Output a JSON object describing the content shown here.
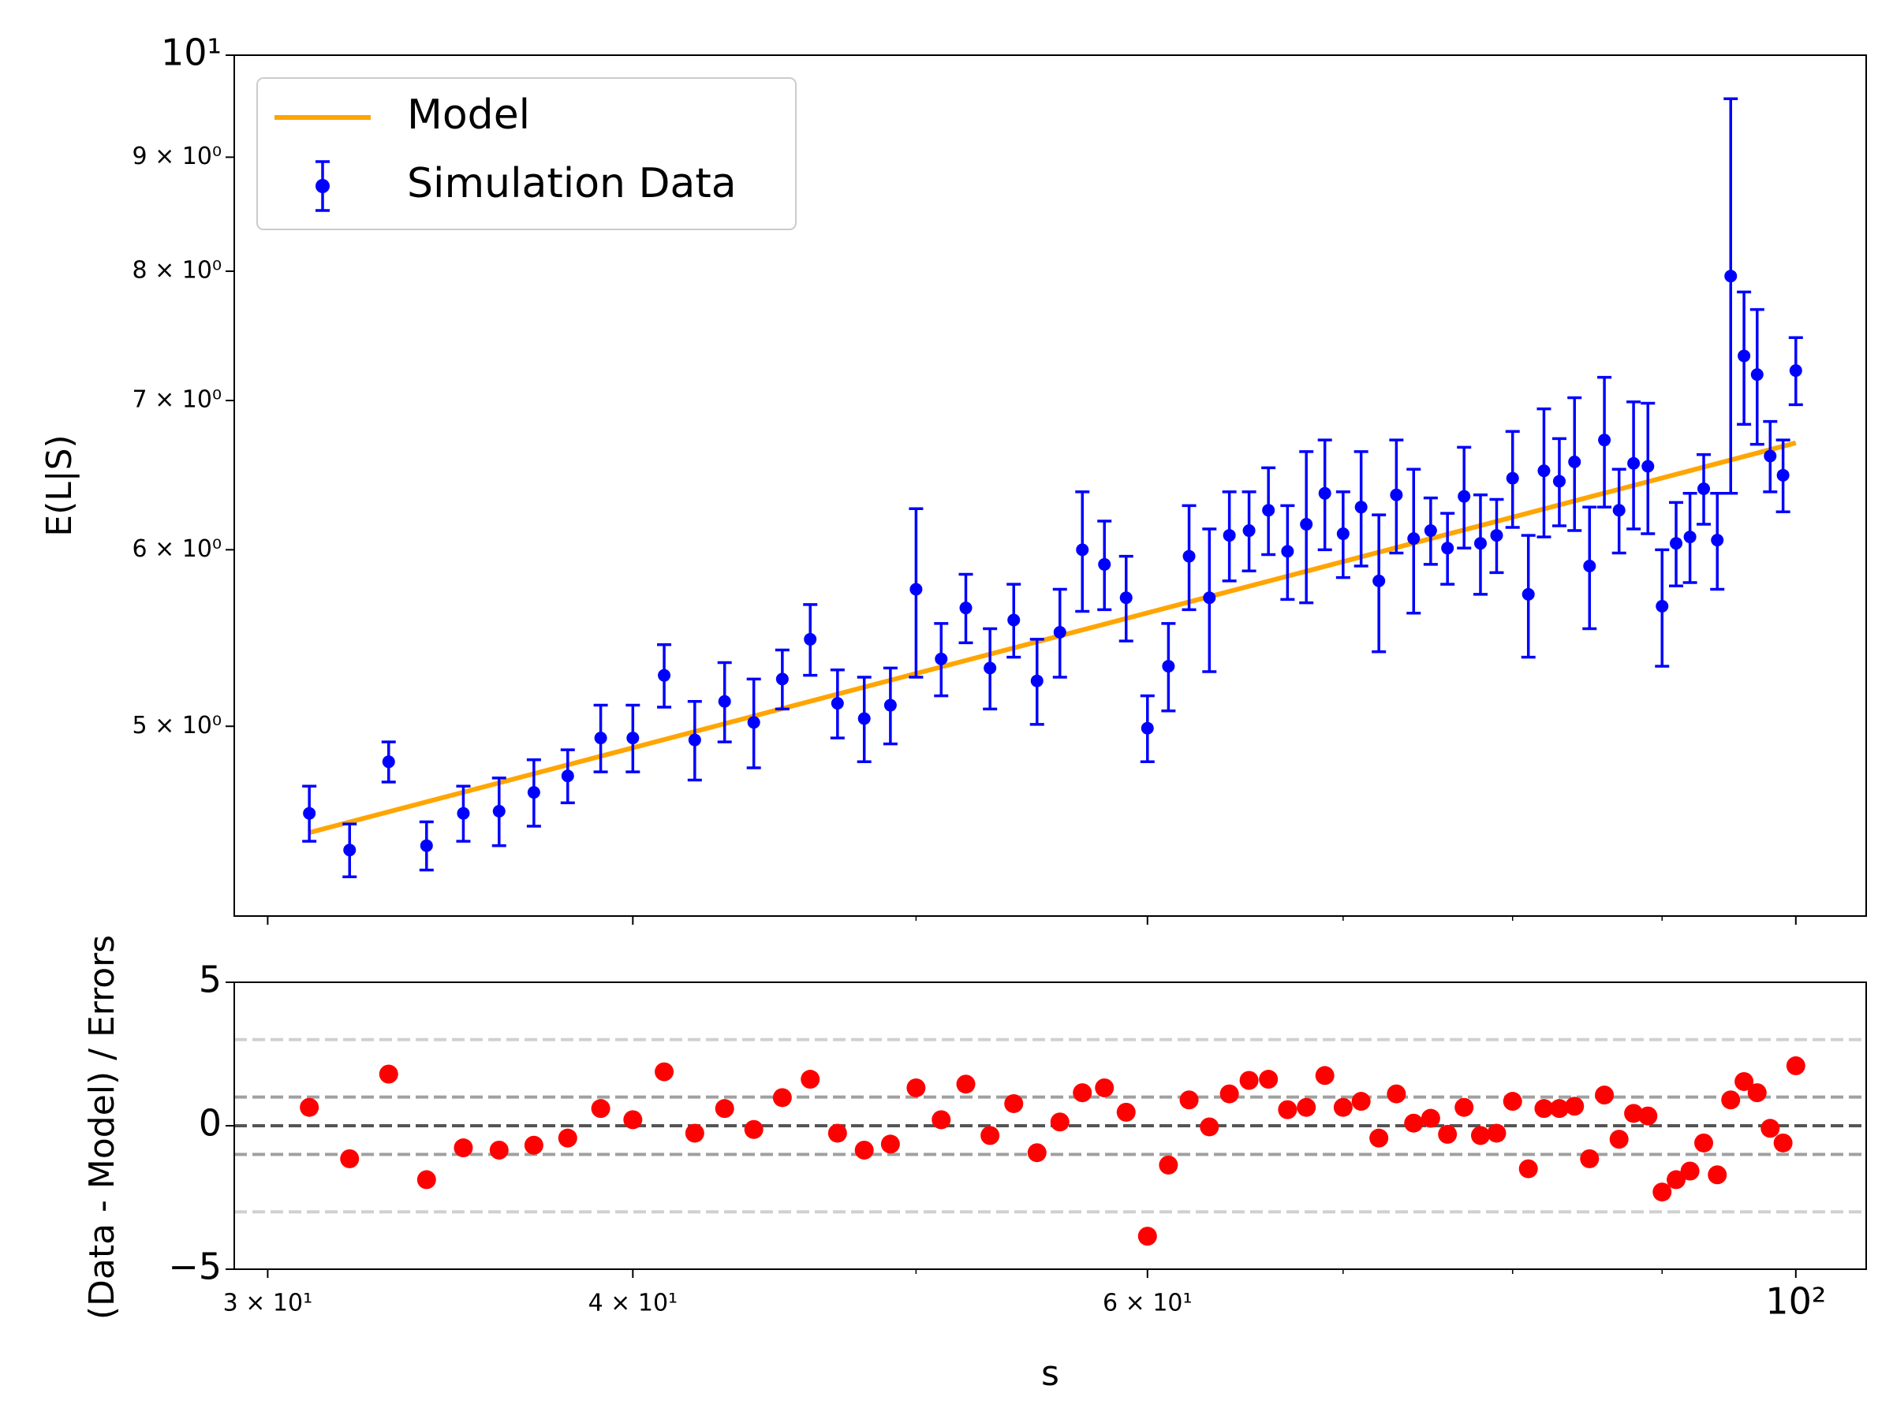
{
  "chart_data": [
    {
      "type": "errorbar",
      "ylabel": "E(L|S)",
      "log_x": true,
      "log_y": true,
      "xlim": [
        29.22,
        105.7
      ],
      "ylim": [
        4.11,
        10
      ],
      "xticks": [
        30,
        40,
        60,
        100
      ],
      "xminorticks": [
        50,
        70,
        80,
        90
      ],
      "show_xtick_labels": false,
      "yticks": [
        {
          "value": 5,
          "label": "5 × 10⁰"
        },
        {
          "value": 6,
          "label": "6 × 10⁰"
        },
        {
          "value": 7,
          "label": "7 × 10⁰"
        },
        {
          "value": 8,
          "label": "8 × 10⁰"
        },
        {
          "value": 9,
          "label": "9 × 10⁰"
        },
        {
          "value": 10,
          "label": "10¹"
        }
      ],
      "legend": "upper left",
      "x": [
        31,
        32,
        33,
        34,
        35,
        36,
        37,
        38,
        39,
        40,
        41,
        42,
        43,
        44,
        45,
        46,
        47,
        48,
        49,
        50,
        51,
        52,
        53,
        54,
        55,
        56,
        57,
        58,
        59,
        60,
        61,
        62,
        63,
        64,
        65,
        66,
        67,
        68,
        69,
        70,
        71,
        72,
        73,
        74,
        75,
        76,
        77,
        78,
        79,
        80,
        81,
        82,
        83,
        84,
        85,
        86,
        87,
        88,
        89,
        90,
        91,
        92,
        93,
        94,
        95,
        96,
        97,
        98,
        99,
        100
      ],
      "series": [
        {
          "name": "Model",
          "kind": "line",
          "color": "#ffa500",
          "x": [
            31,
            100
          ],
          "values": [
            4.48,
            6.7
          ]
        },
        {
          "name": "Simulation Data",
          "kind": "errorbar",
          "color": "#0000ff",
          "values": [
            4.57,
            4.4,
            4.82,
            4.42,
            4.57,
            4.58,
            4.67,
            4.75,
            4.94,
            4.94,
            5.27,
            4.93,
            5.13,
            5.02,
            5.25,
            5.47,
            5.12,
            5.04,
            5.11,
            5.76,
            5.36,
            5.65,
            5.31,
            5.58,
            5.24,
            5.51,
            6.0,
            5.91,
            5.71,
            4.99,
            5.32,
            5.96,
            5.71,
            6.09,
            6.12,
            6.25,
            5.99,
            6.16,
            6.36,
            6.1,
            6.27,
            5.81,
            6.35,
            6.07,
            6.12,
            6.01,
            6.34,
            6.04,
            6.09,
            6.46,
            5.73,
            6.51,
            6.44,
            6.57,
            5.9,
            6.72,
            6.25,
            6.56,
            6.54,
            5.66,
            6.04,
            6.08,
            6.39,
            6.06,
            7.96,
            7.33,
            7.19,
            6.61,
            6.48,
            7.22
          ],
          "errors": [
            0.13,
            0.12,
            0.1,
            0.11,
            0.13,
            0.16,
            0.16,
            0.13,
            0.17,
            0.17,
            0.17,
            0.2,
            0.21,
            0.23,
            0.16,
            0.2,
            0.18,
            0.22,
            0.2,
            0.5,
            0.2,
            0.2,
            0.22,
            0.21,
            0.23,
            0.25,
            0.37,
            0.27,
            0.25,
            0.17,
            0.24,
            0.32,
            0.42,
            0.28,
            0.25,
            0.28,
            0.29,
            0.48,
            0.36,
            0.27,
            0.37,
            0.41,
            0.37,
            0.45,
            0.21,
            0.22,
            0.33,
            0.31,
            0.23,
            0.32,
            0.36,
            0.43,
            0.29,
            0.45,
            0.37,
            0.45,
            0.27,
            0.43,
            0.44,
            0.34,
            0.26,
            0.28,
            0.23,
            0.3,
            1.6,
            0.5,
            0.5,
            0.24,
            0.24,
            0.25
          ]
        }
      ]
    },
    {
      "type": "scatter",
      "xlabel": "s",
      "ylabel": "(Data - Model) / Errors",
      "log_x": true,
      "xlim": [
        29.22,
        105.7
      ],
      "ylim": [
        -5,
        5
      ],
      "xticks": [
        {
          "value": 30,
          "label": "3 × 10¹"
        },
        {
          "value": 40,
          "label": "4 × 10¹"
        },
        {
          "value": 60,
          "label": "6 × 10¹"
        },
        {
          "value": 100,
          "label": "10²"
        }
      ],
      "xminorticks": [
        50,
        70,
        80,
        90
      ],
      "yticks": [
        {
          "value": -5,
          "label": "−5"
        },
        0,
        5
      ],
      "reference_lines": [
        {
          "value": 3,
          "color": "#d0d0d0"
        },
        {
          "value": 1,
          "color": "#a0a0a0"
        },
        {
          "value": 0,
          "color": "#555555"
        },
        {
          "value": -1,
          "color": "#a0a0a0"
        },
        {
          "value": -3,
          "color": "#d0d0d0"
        }
      ],
      "color": "#ff0000",
      "x": [
        31,
        32,
        33,
        34,
        35,
        36,
        37,
        38,
        39,
        40,
        41,
        42,
        43,
        44,
        45,
        46,
        47,
        48,
        49,
        50,
        51,
        52,
        53,
        54,
        55,
        56,
        57,
        58,
        59,
        60,
        61,
        62,
        63,
        64,
        65,
        66,
        67,
        68,
        69,
        70,
        71,
        72,
        73,
        74,
        75,
        76,
        77,
        78,
        79,
        80,
        81,
        82,
        83,
        84,
        85,
        86,
        87,
        88,
        89,
        90,
        91,
        92,
        93,
        94,
        95,
        96,
        97,
        98,
        99,
        100
      ],
      "values": [
        0.64,
        -1.15,
        1.8,
        -1.88,
        -0.77,
        -0.85,
        -0.68,
        -0.43,
        0.6,
        0.21,
        1.88,
        -0.26,
        0.6,
        -0.13,
        0.98,
        1.62,
        -0.26,
        -0.85,
        -0.64,
        1.32,
        0.21,
        1.45,
        -0.34,
        0.77,
        -0.94,
        0.13,
        1.15,
        1.32,
        0.47,
        -3.85,
        -1.37,
        0.9,
        -0.04,
        1.11,
        1.58,
        1.62,
        0.56,
        0.64,
        1.75,
        0.64,
        0.85,
        -0.43,
        1.11,
        0.09,
        0.26,
        -0.3,
        0.64,
        -0.34,
        -0.26,
        0.85,
        -1.5,
        0.6,
        0.6,
        0.68,
        -1.15,
        1.07,
        -0.47,
        0.43,
        0.34,
        -2.31,
        -1.88,
        -1.58,
        -0.6,
        -1.71,
        0.9,
        1.54,
        1.15,
        -0.09,
        -0.6,
        2.09
      ]
    }
  ]
}
